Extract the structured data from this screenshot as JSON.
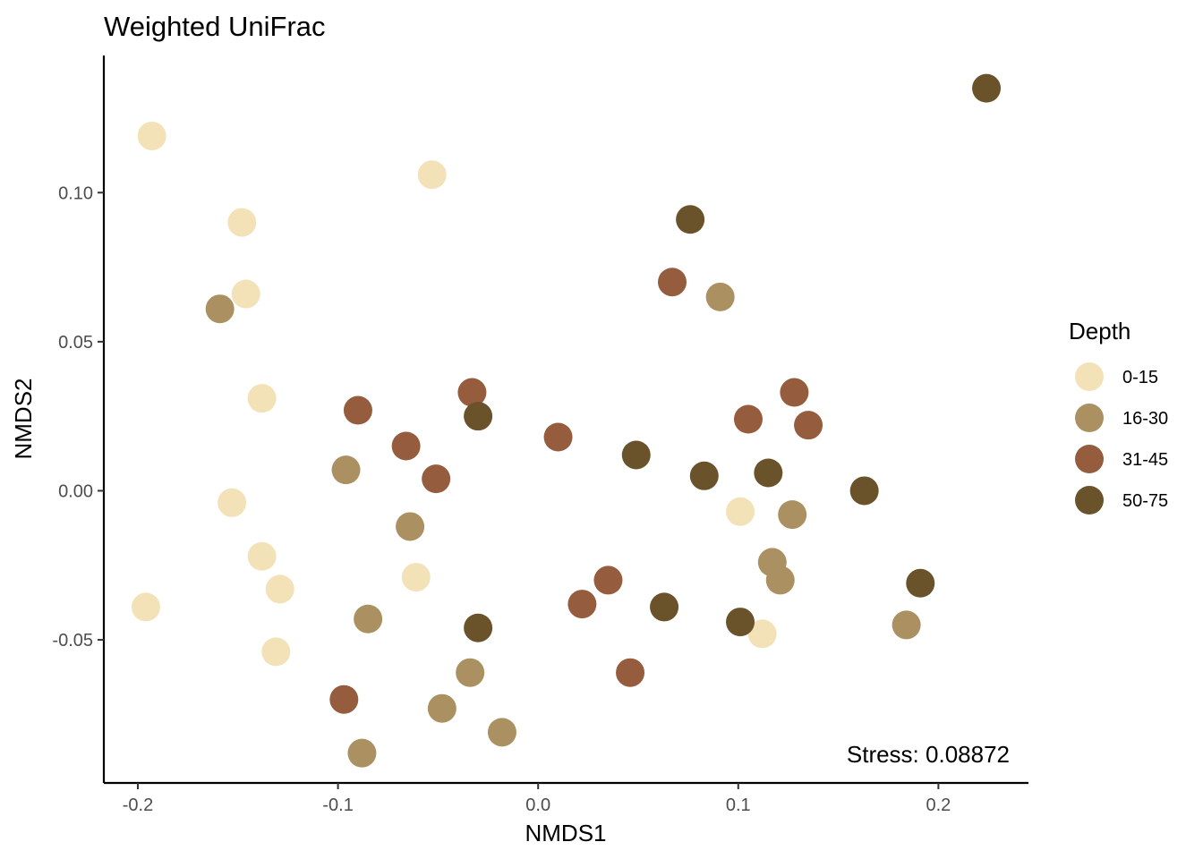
{
  "chart_data": {
    "type": "scatter",
    "title": "Weighted UniFrac",
    "xlabel": "NMDS1",
    "ylabel": "NMDS2",
    "xlim": [
      -0.217,
      0.245
    ],
    "ylim": [
      -0.098,
      0.146
    ],
    "xticks": [
      -0.2,
      -0.1,
      0.0,
      0.1,
      0.2
    ],
    "xtick_labels": [
      "-0.2",
      "-0.1",
      "0.0",
      "0.1",
      "0.2"
    ],
    "yticks": [
      -0.05,
      0.0,
      0.05,
      0.1
    ],
    "ytick_labels": [
      "-0.05",
      "0.00",
      "0.05",
      "0.10"
    ],
    "grid": false,
    "legend_position": "right",
    "legend_title": "Depth",
    "annotation": "Stress: 0.08872",
    "series": [
      {
        "name": "0-15",
        "color": "#f3e2b8",
        "points": [
          [
            -0.193,
            0.119
          ],
          [
            -0.053,
            0.106
          ],
          [
            -0.148,
            0.09
          ],
          [
            -0.146,
            0.066
          ],
          [
            -0.138,
            0.031
          ],
          [
            -0.153,
            -0.004
          ],
          [
            -0.138,
            -0.022
          ],
          [
            -0.129,
            -0.033
          ],
          [
            -0.196,
            -0.039
          ],
          [
            -0.131,
            -0.054
          ],
          [
            -0.061,
            -0.029
          ],
          [
            0.101,
            -0.007
          ],
          [
            0.112,
            -0.048
          ]
        ]
      },
      {
        "name": "16-30",
        "color": "#ab9162",
        "points": [
          [
            -0.159,
            0.061
          ],
          [
            -0.096,
            0.007
          ],
          [
            -0.064,
            -0.012
          ],
          [
            -0.085,
            -0.043
          ],
          [
            -0.034,
            -0.061
          ],
          [
            -0.048,
            -0.073
          ],
          [
            -0.088,
            -0.088
          ],
          [
            -0.018,
            -0.081
          ],
          [
            0.091,
            0.065
          ],
          [
            0.127,
            -0.008
          ],
          [
            0.117,
            -0.024
          ],
          [
            0.121,
            -0.03
          ],
          [
            0.184,
            -0.045
          ]
        ]
      },
      {
        "name": "31-45",
        "color": "#955d3e",
        "points": [
          [
            -0.09,
            0.027
          ],
          [
            -0.066,
            0.015
          ],
          [
            -0.051,
            0.004
          ],
          [
            -0.033,
            0.033
          ],
          [
            -0.097,
            -0.07
          ],
          [
            0.01,
            0.018
          ],
          [
            0.022,
            -0.038
          ],
          [
            0.035,
            -0.03
          ],
          [
            0.046,
            -0.061
          ],
          [
            0.067,
            0.07
          ],
          [
            0.105,
            0.024
          ],
          [
            0.128,
            0.033
          ],
          [
            0.135,
            0.022
          ]
        ]
      },
      {
        "name": "50-75",
        "color": "#6a522a",
        "points": [
          [
            -0.03,
            0.025
          ],
          [
            -0.03,
            -0.046
          ],
          [
            0.049,
            0.012
          ],
          [
            0.063,
            -0.039
          ],
          [
            0.076,
            0.091
          ],
          [
            0.083,
            0.005
          ],
          [
            0.101,
            -0.044
          ],
          [
            0.115,
            0.006
          ],
          [
            0.163,
            0.0
          ],
          [
            0.191,
            -0.031
          ],
          [
            0.224,
            0.135
          ]
        ]
      }
    ]
  }
}
